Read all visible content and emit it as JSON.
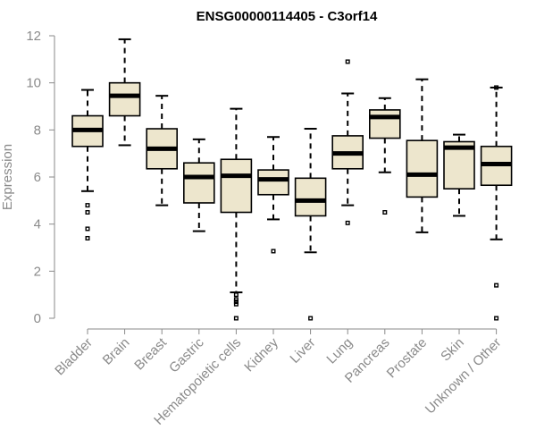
{
  "chart_data": {
    "type": "boxplot",
    "title": "ENSG00000114405 - C3orf14",
    "xlabel": "",
    "ylabel": "Expression",
    "ylim": [
      0,
      12
    ],
    "yticks": [
      0,
      2,
      4,
      6,
      8,
      10,
      12
    ],
    "grid": false,
    "colors": {
      "box_fill": "#ede6cd",
      "box_stroke": "#000000",
      "axis": "#8a8a8a"
    },
    "categories": [
      "Bladder",
      "Brain",
      "Breast",
      "Gastric",
      "Hematopoietic cells",
      "Kidney",
      "Liver",
      "Lung",
      "Pancreas",
      "Prostate",
      "Skin",
      "Unknown / Other"
    ],
    "boxes": [
      {
        "category": "Bladder",
        "whislo": 5.4,
        "q1": 7.3,
        "med": 8.0,
        "q3": 8.6,
        "whishi": 9.7,
        "fliers": [
          4.8,
          4.5,
          3.8,
          3.4
        ]
      },
      {
        "category": "Brain",
        "whislo": 7.35,
        "q1": 8.6,
        "med": 9.45,
        "q3": 10.0,
        "whishi": 11.85,
        "fliers": []
      },
      {
        "category": "Breast",
        "whislo": 4.8,
        "q1": 6.35,
        "med": 7.2,
        "q3": 8.05,
        "whishi": 9.45,
        "fliers": []
      },
      {
        "category": "Gastric",
        "whislo": 3.7,
        "q1": 4.9,
        "med": 6.0,
        "q3": 6.6,
        "whishi": 7.6,
        "fliers": []
      },
      {
        "category": "Hematopoietic cells",
        "whislo": 1.1,
        "q1": 4.5,
        "med": 6.05,
        "q3": 6.75,
        "whishi": 8.9,
        "fliers": [
          1.0,
          0.8,
          0.7,
          0.6,
          0.0
        ]
      },
      {
        "category": "Kidney",
        "whislo": 4.2,
        "q1": 5.25,
        "med": 5.9,
        "q3": 6.3,
        "whishi": 7.7,
        "fliers": [
          2.85
        ]
      },
      {
        "category": "Liver",
        "whislo": 2.8,
        "q1": 4.35,
        "med": 5.0,
        "q3": 5.95,
        "whishi": 8.05,
        "fliers": [
          0.0
        ]
      },
      {
        "category": "Lung",
        "whislo": 4.8,
        "q1": 6.35,
        "med": 7.0,
        "q3": 7.75,
        "whishi": 9.55,
        "fliers": [
          10.9,
          4.05
        ]
      },
      {
        "category": "Pancreas",
        "whislo": 6.2,
        "q1": 7.65,
        "med": 8.55,
        "q3": 8.85,
        "whishi": 9.35,
        "fliers": [
          4.5
        ]
      },
      {
        "category": "Prostate",
        "whislo": 3.65,
        "q1": 5.15,
        "med": 6.1,
        "q3": 7.55,
        "whishi": 10.15,
        "fliers": []
      },
      {
        "category": "Skin",
        "whislo": 4.35,
        "q1": 5.5,
        "med": 7.25,
        "q3": 7.5,
        "whishi": 7.8,
        "fliers": []
      },
      {
        "category": "Unknown / Other",
        "whislo": 3.35,
        "q1": 5.65,
        "med": 6.55,
        "q3": 7.3,
        "whishi": 9.8,
        "fliers": [
          9.8,
          1.4,
          0.0
        ]
      }
    ]
  }
}
